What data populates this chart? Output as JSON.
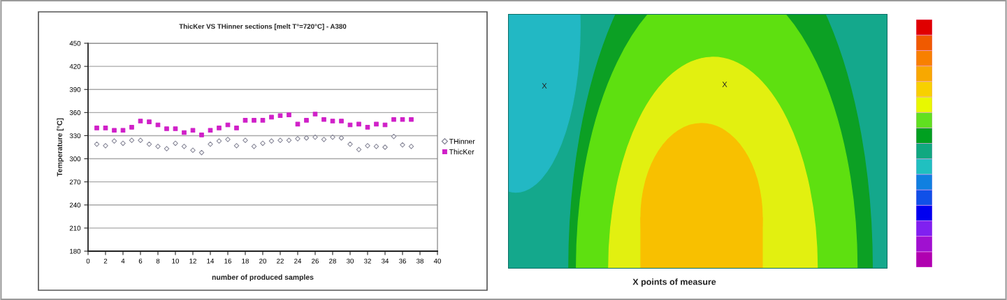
{
  "chart_data": [
    {
      "type": "scatter",
      "title": "ThicKer VS THinner sections [melt T°=720°C] - A380",
      "xlabel": "number of produced samples",
      "ylabel": "Temperature [°C]",
      "x": [
        1,
        2,
        3,
        4,
        5,
        6,
        7,
        8,
        9,
        10,
        11,
        12,
        13,
        14,
        15,
        16,
        17,
        18,
        19,
        20,
        21,
        22,
        23,
        24,
        25,
        26,
        27,
        28,
        29,
        30,
        31,
        32,
        33,
        34,
        35,
        36,
        37
      ],
      "series": [
        {
          "name": "THinner",
          "color": "#8a8a9a",
          "marker": "diamond",
          "values": [
            319,
            317,
            323,
            320,
            324,
            324,
            319,
            316,
            313,
            320,
            316,
            311,
            308,
            319,
            323,
            325,
            317,
            324,
            316,
            320,
            323,
            324,
            324,
            326,
            327,
            328,
            325,
            328,
            327,
            319,
            312,
            317,
            316,
            315,
            329,
            318,
            316
          ]
        },
        {
          "name": "ThicKer",
          "color": "#d020c8",
          "marker": "square",
          "values": [
            340,
            340,
            337,
            337,
            341,
            349,
            348,
            344,
            339,
            339,
            334,
            337,
            331,
            337,
            340,
            344,
            340,
            350,
            350,
            350,
            354,
            356,
            357,
            345,
            350,
            358,
            351,
            349,
            349,
            344,
            345,
            341,
            345,
            344,
            351,
            351,
            351
          ]
        }
      ],
      "xlim": [
        0,
        40
      ],
      "xticks": [
        0,
        2,
        4,
        6,
        8,
        10,
        12,
        14,
        16,
        18,
        20,
        22,
        24,
        26,
        28,
        30,
        32,
        34,
        36,
        38,
        40
      ],
      "ylim": [
        180,
        450
      ],
      "yticks": [
        180,
        210,
        240,
        270,
        300,
        330,
        360,
        390,
        420,
        450
      ],
      "grid": "y",
      "legend": "right"
    },
    {
      "type": "other",
      "annotations": [
        "X",
        "X",
        "X points of measure"
      ]
    }
  ]
}
